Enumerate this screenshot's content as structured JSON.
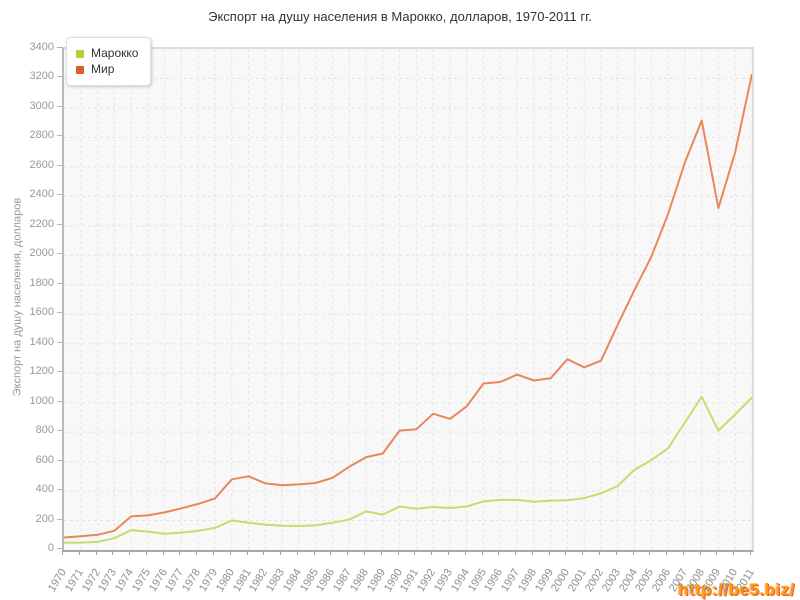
{
  "title": "Экспорт на душу населения в Марокко, долларов, 1970-2011 гг.",
  "watermark": "http://be5.biz/",
  "legend": {
    "items": [
      {
        "label": "Марокко",
        "color": "#b3d032"
      },
      {
        "label": "Мир",
        "color": "#dd5f28"
      }
    ]
  },
  "chart_data": {
    "type": "line",
    "title": "Экспорт на душу населения в Марокко, долларов, 1970-2011 гг.",
    "xlabel": "",
    "ylabel": "Экспорт на душу населения, долларов",
    "ylim": [
      0,
      3400
    ],
    "ytick_step": 200,
    "grid": true,
    "legend_position": "top-left",
    "x": [
      1970,
      1971,
      1972,
      1973,
      1974,
      1975,
      1976,
      1977,
      1978,
      1979,
      1980,
      1981,
      1982,
      1983,
      1984,
      1985,
      1986,
      1987,
      1988,
      1989,
      1990,
      1991,
      1992,
      1993,
      1994,
      1995,
      1996,
      1997,
      1998,
      1999,
      2000,
      2001,
      2002,
      2003,
      2004,
      2005,
      2006,
      2007,
      2008,
      2009,
      2010,
      2011
    ],
    "series": [
      {
        "name": "Марокко",
        "line_color": "#c7dc6c",
        "swatch_color": "#b3d032",
        "values": [
          50,
          50,
          55,
          80,
          135,
          125,
          110,
          118,
          130,
          150,
          200,
          185,
          172,
          165,
          163,
          167,
          185,
          206,
          262,
          240,
          295,
          280,
          292,
          285,
          295,
          330,
          340,
          340,
          328,
          335,
          337,
          352,
          385,
          435,
          545,
          610,
          690,
          865,
          1040,
          810,
          920,
          1035
        ]
      },
      {
        "name": "Мир",
        "line_color": "#e8875c",
        "swatch_color": "#dd5f28",
        "values": [
          85,
          93,
          103,
          130,
          228,
          235,
          255,
          283,
          313,
          350,
          480,
          500,
          452,
          440,
          445,
          455,
          490,
          565,
          630,
          655,
          810,
          820,
          925,
          890,
          975,
          1130,
          1140,
          1190,
          1150,
          1165,
          1295,
          1240,
          1285,
          1530,
          1765,
          1990,
          2280,
          2630,
          2915,
          2320,
          2700,
          3230
        ]
      }
    ]
  }
}
